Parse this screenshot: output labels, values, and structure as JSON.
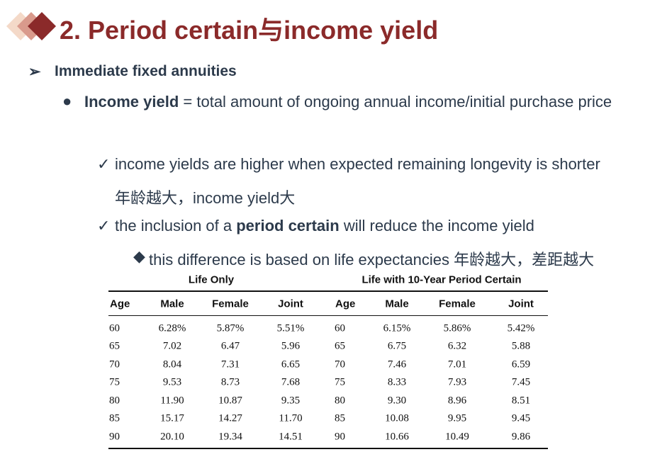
{
  "title": "2. Period certain与income yield",
  "bullets": [
    {
      "text": "Immediate fixed annuities"
    },
    {
      "bold": "Income yield",
      "text": " = total amount of ongoing annual income/initial purchase price"
    },
    {
      "text": "income yields are higher when expected remaining longevity is shorter",
      "note": "年龄越大，income yield大"
    },
    {
      "before": "the inclusion of a ",
      "bold": "period certain",
      "after": " will reduce the income yield"
    },
    {
      "text": "this difference is based on life expectancies 年龄越大，差距越大"
    }
  ],
  "table": {
    "groups": [
      "Life Only",
      "Life with 10-Year Period Certain"
    ],
    "header": [
      "Age",
      "Male",
      "Female",
      "Joint",
      "Age",
      "Male",
      "Female",
      "Joint"
    ],
    "rows": [
      [
        "60",
        "6.28%",
        "5.87%",
        "5.51%",
        "60",
        "6.15%",
        "5.86%",
        "5.42%"
      ],
      [
        "65",
        "7.02",
        "6.47",
        "5.96",
        "65",
        "6.75",
        "6.32",
        "5.88"
      ],
      [
        "70",
        "8.04",
        "7.31",
        "6.65",
        "70",
        "7.46",
        "7.01",
        "6.59"
      ],
      [
        "75",
        "9.53",
        "8.73",
        "7.68",
        "75",
        "8.33",
        "7.93",
        "7.45"
      ],
      [
        "80",
        "11.90",
        "10.87",
        "9.35",
        "80",
        "9.30",
        "8.96",
        "8.51"
      ],
      [
        "85",
        "15.17",
        "14.27",
        "11.70",
        "85",
        "10.08",
        "9.95",
        "9.45"
      ],
      [
        "90",
        "20.10",
        "19.34",
        "14.51",
        "90",
        "10.66",
        "10.49",
        "9.86"
      ]
    ]
  }
}
